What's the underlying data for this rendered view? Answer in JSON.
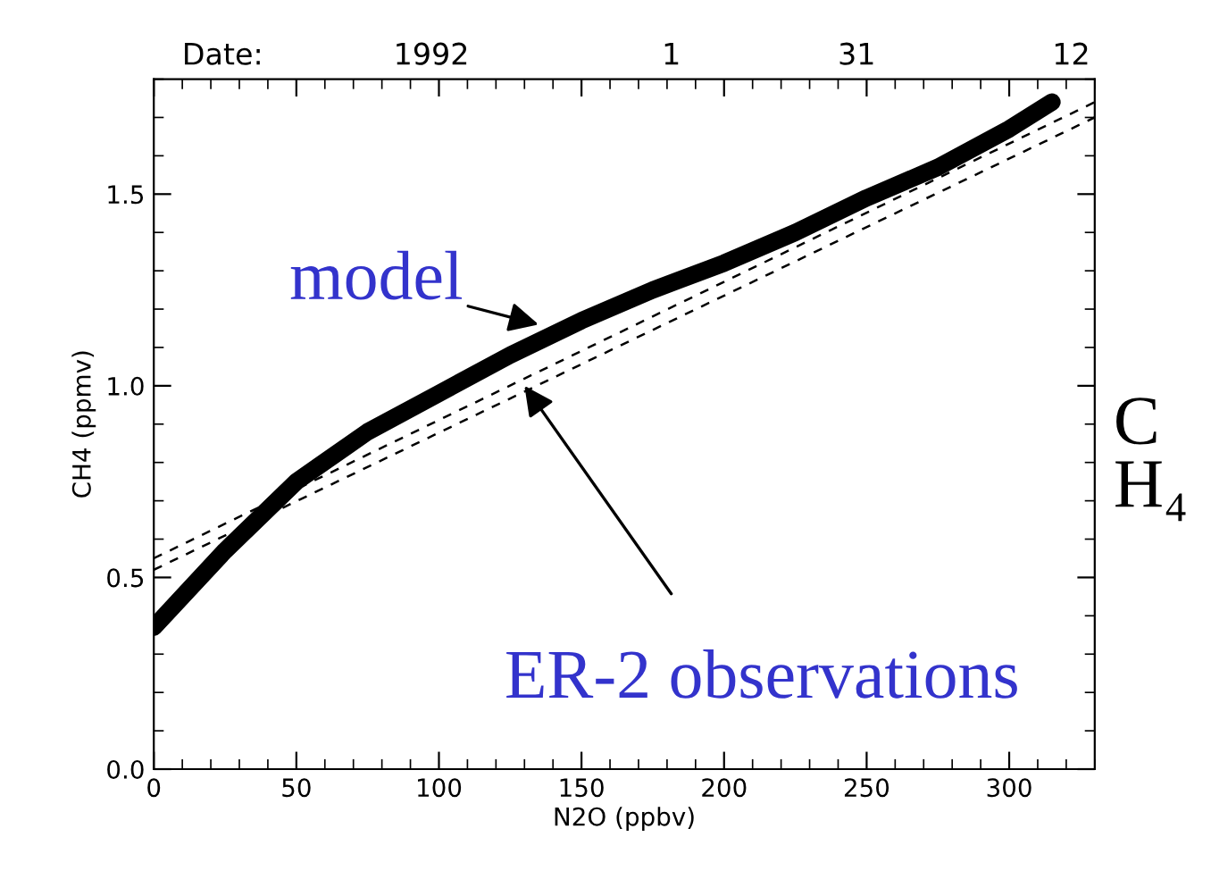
{
  "chart_data": {
    "type": "line",
    "xlabel": "N2O (ppbv)",
    "ylabel": "CH4 (ppmv)",
    "xlim": [
      0,
      330
    ],
    "xticks": [
      0,
      50,
      100,
      150,
      200,
      250,
      300
    ],
    "ylim": [
      0,
      1.8
    ],
    "yticks": [
      {
        "value": 0,
        "label": "0.0"
      },
      0.5,
      {
        "value": 1,
        "label": "1.0"
      },
      1.5
    ],
    "grid": false,
    "legend": false,
    "marker": "none",
    "series": [
      {
        "color": "#000000",
        "line_style": "solid",
        "x": [
          0,
          10,
          25,
          50,
          75,
          100,
          125,
          150,
          175,
          200,
          225,
          250,
          275,
          300,
          315
        ],
        "values": [
          0.37,
          0.45,
          0.57,
          0.75,
          0.88,
          0.98,
          1.08,
          1.17,
          1.25,
          1.32,
          1.4,
          1.49,
          1.57,
          1.67,
          1.74
        ]
      },
      {
        "color": "#000000",
        "line_style": "dashed",
        "x": [
          0,
          330
        ],
        "values": [
          0.52,
          1.7
        ]
      },
      {
        "color": "#000000",
        "line_style": "dashed",
        "x": [
          0,
          330
        ],
        "values": [
          0.55,
          1.74
        ]
      }
    ],
    "annotations": [
      {
        "text": "model",
        "x": 140,
        "y": 1.15
      },
      {
        "text": "ER-2 observations",
        "x": 130,
        "y": 1.0
      },
      "C\nH₄",
      "Date:",
      "1992",
      "1",
      "31",
      "12"
    ]
  }
}
